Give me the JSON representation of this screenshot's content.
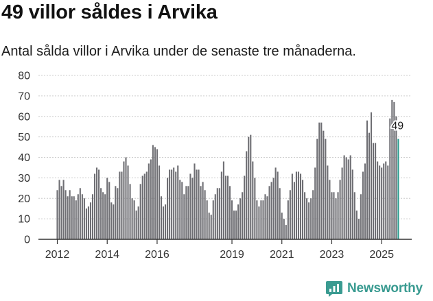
{
  "page": {
    "title": "49 villor såldes i Arvika",
    "subtitle": "Antal sålda villor i Arvika under de senaste tre månaderna."
  },
  "brand": {
    "name": "Newsworthy",
    "icon": "newsworthy-logo-icon",
    "color": "#3a9b91"
  },
  "colors": {
    "bars": "#6e6e73",
    "highlight": "#2a9d8f",
    "grid": "#cccccc",
    "axis": "#333333"
  },
  "chart_data": {
    "type": "bar",
    "title": "49 villor såldes i Arvika",
    "subtitle": "Antal sålda villor i Arvika under de senaste tre månaderna.",
    "xlabel": "",
    "ylabel": "",
    "ylim": [
      0,
      80
    ],
    "yticks": [
      0,
      10,
      20,
      30,
      40,
      50,
      60,
      70,
      80
    ],
    "grid": true,
    "x_start": "2012-01",
    "frequency": "monthly",
    "xtick_labels": [
      {
        "label": "2012",
        "year": 2012
      },
      {
        "label": "2014",
        "year": 2014
      },
      {
        "label": "2016",
        "year": 2016
      },
      {
        "label": "2019",
        "year": 2019
      },
      {
        "label": "2021",
        "year": 2021
      },
      {
        "label": "2023",
        "year": 2023
      },
      {
        "label": "2025",
        "year": 2025
      }
    ],
    "highlight": {
      "index": 164,
      "label": "49",
      "value": 49
    },
    "values": [
      24,
      29,
      26,
      29,
      24,
      21,
      24,
      21,
      21,
      19,
      22,
      25,
      22,
      20,
      15,
      16,
      18,
      22,
      32,
      35,
      34,
      25,
      23,
      22,
      30,
      28,
      18,
      17,
      26,
      25,
      33,
      33,
      38,
      40,
      36,
      27,
      20,
      19,
      14,
      16,
      27,
      31,
      32,
      33,
      37,
      39,
      46,
      45,
      44,
      36,
      21,
      16,
      17,
      30,
      34,
      34,
      35,
      33,
      36,
      29,
      28,
      22,
      26,
      26,
      32,
      30,
      37,
      34,
      34,
      26,
      28,
      24,
      19,
      13,
      12,
      19,
      22,
      25,
      25,
      33,
      38,
      31,
      31,
      26,
      19,
      14,
      14,
      17,
      20,
      23,
      31,
      43,
      50,
      51,
      38,
      30,
      19,
      16,
      19,
      19,
      22,
      21,
      26,
      28,
      30,
      35,
      33,
      25,
      13,
      10,
      7,
      19,
      24,
      32,
      28,
      33,
      33,
      32,
      29,
      23,
      20,
      18,
      20,
      24,
      35,
      49,
      57,
      57,
      53,
      49,
      36,
      29,
      23,
      23,
      20,
      23,
      29,
      35,
      41,
      40,
      39,
      41,
      34,
      23,
      14,
      10,
      22,
      33,
      37,
      58,
      52,
      62,
      47,
      47,
      38,
      36,
      35,
      37,
      38,
      36,
      59,
      68,
      67,
      60,
      49
    ]
  }
}
